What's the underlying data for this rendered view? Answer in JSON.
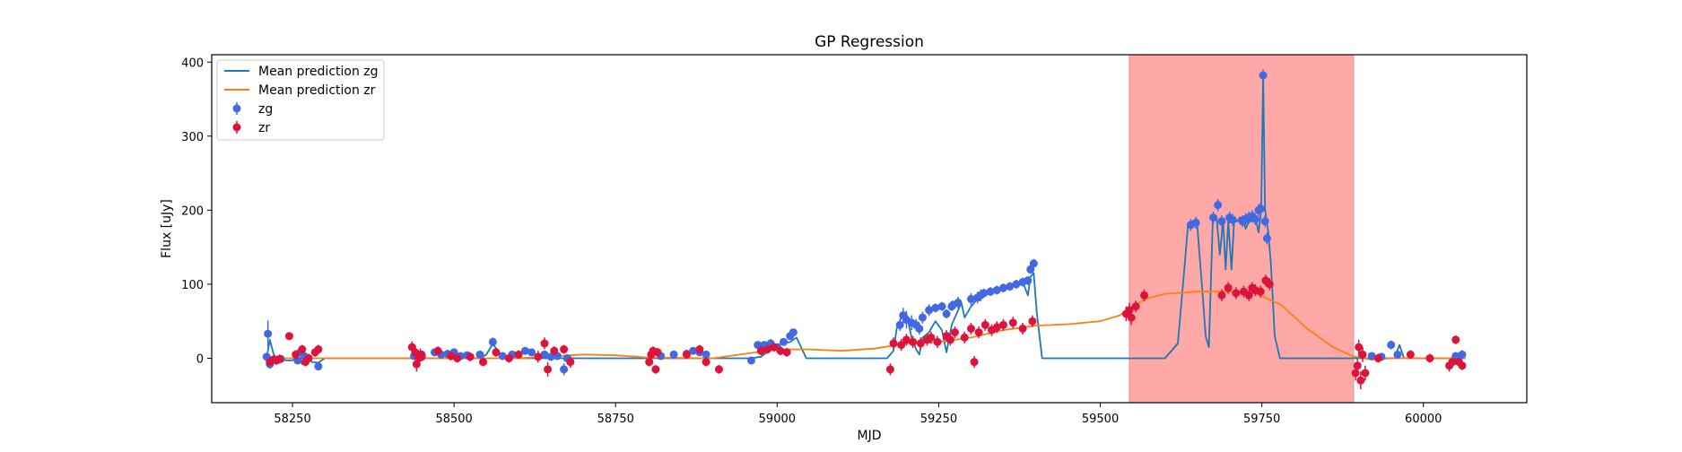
{
  "chart_data": {
    "type": "scatter",
    "title": "GP Regression",
    "xlabel": "MJD",
    "ylabel": "Flux [uJy]",
    "xlim": [
      58125,
      60160
    ],
    "ylim": [
      -60,
      410
    ],
    "xticks": [
      58250,
      58500,
      58750,
      59000,
      59250,
      59500,
      59750,
      60000
    ],
    "yticks": [
      0,
      100,
      200,
      300,
      400
    ],
    "grid": false,
    "legend_position": "top-left",
    "shaded_region": {
      "x_start": 59545,
      "x_end": 59892,
      "color": "#ffa8a8"
    },
    "colors": {
      "zg_points": "#4169e1",
      "zr_points": "#dc143c",
      "zg_line": "#1f77b4",
      "zr_line": "#ff7f0e"
    },
    "legend": [
      {
        "label": "Mean prediction zg",
        "kind": "line",
        "color": "#1f77b4"
      },
      {
        "label": "Mean prediction zr",
        "kind": "line",
        "color": "#ff7f0e"
      },
      {
        "label": "zg",
        "kind": "marker",
        "color": "#4169e1"
      },
      {
        "label": "zr",
        "kind": "marker",
        "color": "#dc143c"
      }
    ],
    "series": [
      {
        "name": "Mean prediction zg",
        "kind": "line",
        "x": [
          58210,
          58215,
          58220,
          58225,
          58232,
          58240,
          58250,
          58258,
          58265,
          58272,
          58280,
          58290,
          58300,
          58400,
          58500,
          58540,
          58550,
          58560,
          58575,
          58600,
          58700,
          58900,
          58960,
          58975,
          58990,
          59000,
          59010,
          59020,
          59030,
          59045,
          59100,
          59170,
          59180,
          59185,
          59192,
          59200,
          59208,
          59215,
          59220,
          59225,
          59235,
          59245,
          59255,
          59262,
          59270,
          59280,
          59285,
          59290,
          59300,
          59310,
          59320,
          59330,
          59340,
          59350,
          59360,
          59370,
          59380,
          59388,
          59392,
          59397,
          59402,
          59410,
          59420,
          59440,
          59600,
          59620,
          59630,
          59636,
          59642,
          59650,
          59658,
          59663,
          59668,
          59674,
          59680,
          59685,
          59690,
          59694,
          59698,
          59703,
          59707,
          59712,
          59716,
          59720,
          59725,
          59730,
          59735,
          59740,
          59745,
          59749,
          59752,
          59755,
          59760,
          59764,
          59770,
          59778,
          59800,
          59940,
          59955,
          59963,
          59970,
          59980,
          60000,
          60065
        ],
        "y": [
          0,
          25,
          8,
          -2,
          0,
          -3,
          -3,
          3,
          -8,
          3,
          -5,
          -6,
          0,
          0,
          0,
          0,
          5,
          20,
          0,
          0,
          0,
          0,
          0,
          2,
          12,
          18,
          20,
          22,
          28,
          0,
          0,
          0,
          10,
          40,
          55,
          60,
          28,
          12,
          5,
          28,
          35,
          50,
          38,
          8,
          45,
          65,
          75,
          55,
          70,
          80,
          85,
          88,
          92,
          95,
          97,
          100,
          103,
          85,
          110,
          115,
          60,
          0,
          0,
          0,
          0,
          20,
          120,
          183,
          185,
          180,
          90,
          30,
          15,
          185,
          190,
          140,
          185,
          120,
          185,
          120,
          185,
          185,
          190,
          190,
          175,
          185,
          185,
          190,
          170,
          200,
          382,
          200,
          170,
          128,
          30,
          0,
          0,
          0,
          0,
          18,
          0,
          0,
          0,
          0
        ]
      },
      {
        "name": "Mean prediction zr",
        "kind": "line",
        "x": [
          58210,
          58250,
          58300,
          58400,
          58600,
          58700,
          58750,
          58800,
          58900,
          59000,
          59050,
          59100,
          59150,
          59200,
          59250,
          59300,
          59350,
          59400,
          59450,
          59500,
          59530,
          59550,
          59570,
          59600,
          59650,
          59700,
          59740,
          59780,
          59820,
          59860,
          59890,
          59920,
          59950,
          60000,
          60065
        ],
        "y": [
          0,
          0,
          0,
          0,
          0,
          5,
          4,
          1,
          0,
          12,
          12,
          10,
          13,
          20,
          22,
          28,
          38,
          44,
          46,
          50,
          58,
          70,
          80,
          87,
          90,
          90,
          88,
          72,
          40,
          15,
          3,
          -2,
          0,
          0,
          0
        ]
      },
      {
        "name": "zg",
        "kind": "points",
        "x": [
          58210,
          58212,
          58215,
          58225,
          58232,
          58258,
          58262,
          58268,
          58290,
          58438,
          58450,
          58470,
          58480,
          58490,
          58500,
          58510,
          58520,
          58540,
          58560,
          58575,
          58590,
          58610,
          58620,
          58640,
          58650,
          58660,
          58670,
          58675,
          58820,
          58840,
          58860,
          58870,
          58880,
          58890,
          58960,
          58970,
          58980,
          58990,
          59000,
          59010,
          59020,
          59025,
          59190,
          59195,
          59200,
          59208,
          59215,
          59220,
          59225,
          59235,
          59245,
          59255,
          59262,
          59270,
          59272,
          59280,
          59300,
          59310,
          59315,
          59320,
          59330,
          59340,
          59350,
          59360,
          59370,
          59380,
          59388,
          59392,
          59397,
          59640,
          59648,
          59675,
          59682,
          59688,
          59700,
          59705,
          59720,
          59725,
          59730,
          59735,
          59740,
          59745,
          59748,
          59752,
          59755,
          59758,
          59905,
          59920,
          59935,
          59950,
          59960,
          60050,
          60060
        ],
        "y": [
          2,
          33,
          -8,
          -2,
          -1,
          -3,
          8,
          3,
          -11,
          3,
          5,
          8,
          5,
          6,
          8,
          3,
          4,
          5,
          22,
          3,
          5,
          10,
          8,
          5,
          2,
          3,
          -15,
          0,
          3,
          5,
          6,
          10,
          8,
          5,
          -3,
          18,
          18,
          20,
          15,
          22,
          30,
          35,
          45,
          58,
          52,
          48,
          45,
          40,
          55,
          65,
          68,
          70,
          60,
          70,
          72,
          75,
          80,
          82,
          85,
          88,
          90,
          92,
          95,
          97,
          100,
          103,
          105,
          120,
          128,
          180,
          183,
          190,
          207,
          185,
          190,
          187,
          185,
          188,
          190,
          192,
          188,
          200,
          202,
          382,
          185,
          162,
          5,
          3,
          2,
          18,
          5,
          3,
          5
        ],
        "err": [
          4,
          18,
          6,
          5,
          4,
          5,
          4,
          5,
          5,
          4,
          4,
          4,
          4,
          4,
          4,
          4,
          4,
          4,
          6,
          4,
          4,
          4,
          4,
          4,
          4,
          4,
          8,
          5,
          4,
          4,
          4,
          4,
          4,
          4,
          4,
          5,
          5,
          6,
          5,
          5,
          5,
          5,
          8,
          10,
          12,
          10,
          8,
          8,
          8,
          8,
          6,
          6,
          6,
          6,
          6,
          8,
          8,
          8,
          8,
          6,
          6,
          6,
          6,
          6,
          6,
          6,
          6,
          6,
          6,
          8,
          8,
          8,
          8,
          8,
          8,
          8,
          8,
          8,
          8,
          8,
          8,
          8,
          8,
          8,
          8,
          8,
          4,
          4,
          4,
          6,
          4,
          4,
          6
        ]
      },
      {
        "name": "zr",
        "kind": "points",
        "x": [
          58215,
          58220,
          58225,
          58230,
          58245,
          58255,
          58265,
          58270,
          58275,
          58285,
          58290,
          58435,
          58440,
          58442,
          58445,
          58448,
          58450,
          58475,
          58495,
          58505,
          58525,
          58545,
          58565,
          58585,
          58600,
          58630,
          58640,
          58645,
          58655,
          58670,
          58680,
          58802,
          58805,
          58808,
          58812,
          58815,
          58860,
          58880,
          58890,
          58910,
          58975,
          58985,
          58995,
          59005,
          59015,
          59175,
          59180,
          59192,
          59200,
          59210,
          59222,
          59232,
          59238,
          59248,
          59262,
          59268,
          59275,
          59290,
          59300,
          59305,
          59312,
          59322,
          59332,
          59340,
          59350,
          59365,
          59380,
          59395,
          59540,
          59545,
          59548,
          59555,
          59568,
          59688,
          59698,
          59710,
          59722,
          59730,
          59735,
          59740,
          59748,
          59756,
          59762,
          59895,
          59898,
          59900,
          59903,
          59906,
          59910,
          59930,
          59980,
          60010,
          60040,
          60045,
          60050,
          60055,
          60060
        ],
        "y": [
          -5,
          -2,
          -3,
          -1,
          30,
          5,
          12,
          -5,
          0,
          8,
          12,
          15,
          8,
          -8,
          0,
          5,
          2,
          10,
          3,
          0,
          2,
          -5,
          8,
          0,
          5,
          2,
          20,
          -15,
          10,
          12,
          -5,
          -5,
          5,
          10,
          -15,
          8,
          5,
          12,
          -5,
          -15,
          10,
          12,
          15,
          10,
          8,
          -15,
          20,
          18,
          25,
          22,
          20,
          25,
          28,
          22,
          30,
          25,
          35,
          28,
          40,
          -5,
          35,
          45,
          38,
          42,
          45,
          48,
          40,
          50,
          60,
          65,
          55,
          70,
          85,
          85,
          95,
          88,
          90,
          85,
          95,
          92,
          90,
          105,
          100,
          -20,
          -10,
          15,
          -30,
          5,
          -20,
          0,
          5,
          0,
          -10,
          -5,
          25,
          -5,
          -10
        ],
        "err": [
          6,
          6,
          6,
          6,
          5,
          6,
          6,
          6,
          6,
          6,
          6,
          8,
          8,
          10,
          8,
          8,
          6,
          6,
          6,
          6,
          6,
          6,
          6,
          6,
          6,
          8,
          8,
          10,
          6,
          6,
          8,
          6,
          6,
          6,
          6,
          6,
          6,
          6,
          6,
          6,
          6,
          6,
          6,
          6,
          6,
          8,
          8,
          8,
          8,
          8,
          8,
          8,
          8,
          8,
          8,
          8,
          8,
          8,
          8,
          8,
          8,
          8,
          8,
          8,
          8,
          8,
          8,
          8,
          10,
          10,
          10,
          8,
          8,
          8,
          8,
          8,
          8,
          8,
          8,
          8,
          8,
          8,
          8,
          10,
          10,
          10,
          12,
          10,
          10,
          6,
          6,
          6,
          8,
          6,
          6,
          6,
          6
        ]
      }
    ]
  }
}
